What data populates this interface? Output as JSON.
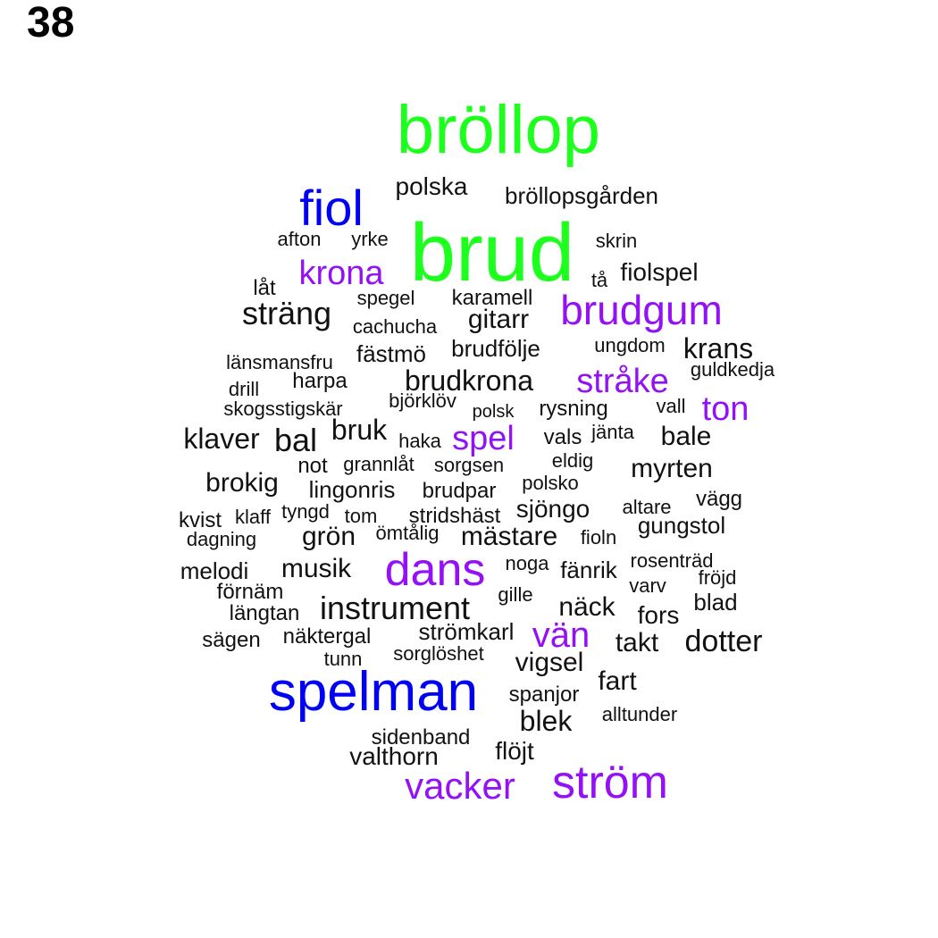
{
  "page_number": "38",
  "colors": {
    "green": "#1dff1d",
    "blue": "#0000f5",
    "purple": "#9311f4",
    "black": "#111111"
  },
  "words": [
    {
      "text": "bröllop",
      "color": "green"
    },
    {
      "text": "brud",
      "color": "green"
    },
    {
      "text": "fiol",
      "color": "blue"
    },
    {
      "text": "spelman",
      "color": "blue"
    },
    {
      "text": "krona",
      "color": "purple"
    },
    {
      "text": "brudgum",
      "color": "purple"
    },
    {
      "text": "stråke",
      "color": "purple"
    },
    {
      "text": "ton",
      "color": "purple"
    },
    {
      "text": "spel",
      "color": "purple"
    },
    {
      "text": "dans",
      "color": "purple"
    },
    {
      "text": "vän",
      "color": "purple"
    },
    {
      "text": "vacker",
      "color": "purple"
    },
    {
      "text": "ström",
      "color": "purple"
    },
    {
      "text": "polska",
      "color": "black"
    },
    {
      "text": "bröllopsgården",
      "color": "black"
    },
    {
      "text": "afton",
      "color": "black"
    },
    {
      "text": "yrke",
      "color": "black"
    },
    {
      "text": "skrin",
      "color": "black"
    },
    {
      "text": "tå",
      "color": "black"
    },
    {
      "text": "fiolspel",
      "color": "black"
    },
    {
      "text": "låt",
      "color": "black"
    },
    {
      "text": "spegel",
      "color": "black"
    },
    {
      "text": "karamell",
      "color": "black"
    },
    {
      "text": "sträng",
      "color": "black"
    },
    {
      "text": "cachucha",
      "color": "black"
    },
    {
      "text": "gitarr",
      "color": "black"
    },
    {
      "text": "ungdom",
      "color": "black"
    },
    {
      "text": "krans",
      "color": "black"
    },
    {
      "text": "fästmö",
      "color": "black"
    },
    {
      "text": "brudfölje",
      "color": "black"
    },
    {
      "text": "länsmansfru",
      "color": "black"
    },
    {
      "text": "guldkedja",
      "color": "black"
    },
    {
      "text": "harpa",
      "color": "black"
    },
    {
      "text": "brudkrona",
      "color": "black"
    },
    {
      "text": "drill",
      "color": "black"
    },
    {
      "text": "björklöv",
      "color": "black"
    },
    {
      "text": "skogsstigskär",
      "color": "black"
    },
    {
      "text": "polsk",
      "color": "black"
    },
    {
      "text": "rysning",
      "color": "black"
    },
    {
      "text": "vall",
      "color": "black"
    },
    {
      "text": "klaver",
      "color": "black"
    },
    {
      "text": "bal",
      "color": "black"
    },
    {
      "text": "bruk",
      "color": "black"
    },
    {
      "text": "haka",
      "color": "black"
    },
    {
      "text": "vals",
      "color": "black"
    },
    {
      "text": "jänta",
      "color": "black"
    },
    {
      "text": "bale",
      "color": "black"
    },
    {
      "text": "not",
      "color": "black"
    },
    {
      "text": "grannlåt",
      "color": "black"
    },
    {
      "text": "sorgsen",
      "color": "black"
    },
    {
      "text": "eldig",
      "color": "black"
    },
    {
      "text": "myrten",
      "color": "black"
    },
    {
      "text": "brokig",
      "color": "black"
    },
    {
      "text": "lingonris",
      "color": "black"
    },
    {
      "text": "brudpar",
      "color": "black"
    },
    {
      "text": "polsko",
      "color": "black"
    },
    {
      "text": "vägg",
      "color": "black"
    },
    {
      "text": "tyngd",
      "color": "black"
    },
    {
      "text": "tom",
      "color": "black"
    },
    {
      "text": "stridshäst",
      "color": "black"
    },
    {
      "text": "sjöngo",
      "color": "black"
    },
    {
      "text": "altare",
      "color": "black"
    },
    {
      "text": "kvist",
      "color": "black"
    },
    {
      "text": "klaff",
      "color": "black"
    },
    {
      "text": "gungstol",
      "color": "black"
    },
    {
      "text": "dagning",
      "color": "black"
    },
    {
      "text": "grön",
      "color": "black"
    },
    {
      "text": "ömtålig",
      "color": "black"
    },
    {
      "text": "mästare",
      "color": "black"
    },
    {
      "text": "fioln",
      "color": "black"
    },
    {
      "text": "melodi",
      "color": "black"
    },
    {
      "text": "musik",
      "color": "black"
    },
    {
      "text": "noga",
      "color": "black"
    },
    {
      "text": "fänrik",
      "color": "black"
    },
    {
      "text": "rosenträd",
      "color": "black"
    },
    {
      "text": "förnäm",
      "color": "black"
    },
    {
      "text": "fröjd",
      "color": "black"
    },
    {
      "text": "varv",
      "color": "black"
    },
    {
      "text": "gille",
      "color": "black"
    },
    {
      "text": "blad",
      "color": "black"
    },
    {
      "text": "längtan",
      "color": "black"
    },
    {
      "text": "instrument",
      "color": "black"
    },
    {
      "text": "näck",
      "color": "black"
    },
    {
      "text": "fors",
      "color": "black"
    },
    {
      "text": "sägen",
      "color": "black"
    },
    {
      "text": "näktergal",
      "color": "black"
    },
    {
      "text": "strömkarl",
      "color": "black"
    },
    {
      "text": "takt",
      "color": "black"
    },
    {
      "text": "dotter",
      "color": "black"
    },
    {
      "text": "tunn",
      "color": "black"
    },
    {
      "text": "sorglöshet",
      "color": "black"
    },
    {
      "text": "vigsel",
      "color": "black"
    },
    {
      "text": "fart",
      "color": "black"
    },
    {
      "text": "spanjor",
      "color": "black"
    },
    {
      "text": "blek",
      "color": "black"
    },
    {
      "text": "alltunder",
      "color": "black"
    },
    {
      "text": "sidenband",
      "color": "black"
    },
    {
      "text": "flöjt",
      "color": "black"
    },
    {
      "text": "valthorn",
      "color": "black"
    }
  ]
}
